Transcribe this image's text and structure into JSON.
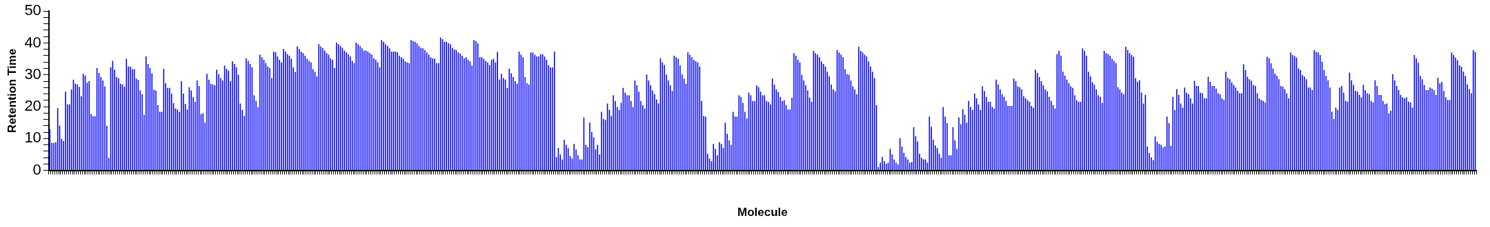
{
  "chart_data": {
    "type": "bar",
    "xlabel": "Molecule",
    "ylabel": "Retention Time",
    "color": "#0000ff",
    "ylim": [
      0,
      50
    ],
    "yticks": [
      0,
      {
        "value": 2,
        "label": null
      },
      {
        "value": 4,
        "label": null
      },
      {
        "value": 6,
        "label": null
      },
      {
        "value": 8,
        "label": null
      },
      10,
      {
        "value": 12,
        "label": null
      },
      {
        "value": 14,
        "label": null
      },
      {
        "value": 16,
        "label": null
      },
      {
        "value": 18,
        "label": null
      },
      20,
      {
        "value": 22,
        "label": null
      },
      {
        "value": 24,
        "label": null
      },
      {
        "value": 26,
        "label": null
      },
      {
        "value": 28,
        "label": null
      },
      30,
      {
        "value": 32,
        "label": null
      },
      {
        "value": 34,
        "label": null
      },
      {
        "value": 36,
        "label": null
      },
      {
        "value": 38,
        "label": null
      },
      40,
      {
        "value": 42,
        "label": null
      },
      {
        "value": 44,
        "label": null
      },
      {
        "value": 46,
        "label": null
      },
      {
        "value": 48,
        "label": null
      },
      50
    ],
    "grid": false,
    "values": [
      12.9,
      8.6,
      8.6,
      8.8,
      19.5,
      14,
      9.9,
      9.2,
      24.7,
      20.7,
      20.7,
      25.4,
      28.5,
      27.2,
      27,
      26.2,
      23.3,
      30.3,
      29.8,
      27.5,
      28,
      17.7,
      17,
      17,
      32.1,
      30.6,
      29.3,
      28.2,
      26.4,
      14,
      3.9,
      32.4,
      34.4,
      31.6,
      29.3,
      28.9,
      27.2,
      27,
      26.2,
      35,
      32.6,
      32.6,
      31.8,
      31.8,
      28.8,
      28.4,
      25.1,
      23.9,
      17.4,
      35.8,
      33.4,
      32.1,
      30.5,
      25.3,
      25.1,
      20.5,
      18.4,
      18.4,
      31.9,
      27.4,
      25.9,
      25.9,
      24.1,
      21.1,
      19.4,
      19.1,
      18.4,
      28,
      24.1,
      20.9,
      19.1,
      26.1,
      25.1,
      23,
      21.5,
      28.2,
      26.5,
      17.7,
      17.9,
      15,
      30.3,
      28.5,
      27.2,
      27,
      26.7,
      31.6,
      30.2,
      29,
      28.2,
      32.9,
      31.9,
      31.3,
      28,
      34.2,
      33.4,
      32.3,
      30,
      21,
      19,
      17.1,
      35.2,
      34.4,
      33.4,
      32.3,
      23.6,
      21.8,
      19.9,
      36.3,
      35.5,
      34.7,
      33.7,
      32.6,
      32.1,
      29,
      37.3,
      37.1,
      35.8,
      34.7,
      33.9,
      38.1,
      37.3,
      36.5,
      36,
      35,
      32.3,
      30.9,
      38.9,
      38.1,
      37.3,
      36.8,
      36,
      35,
      34.4,
      33.9,
      31.8,
      30.9,
      29.5,
      39.6,
      38.9,
      38.4,
      37.6,
      36.8,
      36.3,
      35.2,
      34.7,
      32.1,
      40.1,
      39.6,
      39.1,
      38.5,
      37.6,
      37.1,
      36.5,
      35.8,
      34.4,
      33.7,
      40.1,
      39.6,
      39.1,
      38.3,
      37.6,
      37.6,
      37.3,
      36.8,
      36.3,
      35.2,
      34.7,
      33.9,
      32.3,
      40.9,
      40.4,
      39.6,
      39.1,
      38.3,
      37.3,
      37.3,
      37.3,
      37.1,
      36,
      35.5,
      35,
      34.2,
      33.9,
      33.7,
      40.9,
      40.6,
      40.4,
      39.9,
      39.1,
      38.5,
      38.3,
      37.8,
      37,
      36.3,
      35.5,
      35.2,
      35,
      33.7,
      33.7,
      41.7,
      41.2,
      40.4,
      40.4,
      39.9,
      39.6,
      38.5,
      38,
      37.8,
      37,
      36.7,
      36,
      35.2,
      35.5,
      34.7,
      34.2,
      32.9,
      40.9,
      40.6,
      39.9,
      35.5,
      35.5,
      35,
      34.4,
      33.9,
      33.1,
      34.7,
      35,
      33.9,
      37.2,
      28.5,
      30.3,
      29,
      28.5,
      25.9,
      31.9,
      30.5,
      29.3,
      28,
      27.2,
      37.3,
      36.3,
      35.5,
      29.3,
      27.4,
      26.9,
      37,
      37,
      36.3,
      35.8,
      35.8,
      36.5,
      36.5,
      35.8,
      34.7,
      33.1,
      32.3,
      32.3,
      37.3,
      4.2,
      7,
      5,
      3.4,
      9.6,
      8,
      7,
      4.5,
      3.7,
      8.3,
      6.5,
      4.7,
      3.4,
      3.4,
      16.6,
      8,
      7.3,
      15,
      12,
      10.4,
      6.6,
      8,
      5,
      18.4,
      16.1,
      15.8,
      21,
      19,
      17.1,
      23.6,
      21.8,
      19.9,
      19,
      21.2,
      25.9,
      24.4,
      23.6,
      23.6,
      21.8,
      19.9,
      28.2,
      26.7,
      24.7,
      21.8,
      20.5,
      19.4,
      30.1,
      28.2,
      26.7,
      25.1,
      23.9,
      22.3,
      21,
      35.2,
      33.9,
      33.1,
      30.1,
      28.2,
      26.7,
      24.9,
      36,
      35.5,
      35,
      32.9,
      30.1,
      28.8,
      27.2,
      37.1,
      36.3,
      35.5,
      34.7,
      34.2,
      33.9,
      32.6,
      21.8,
      17.1,
      16.9,
      5.2,
      3.7,
      2.9,
      8.3,
      6.7,
      4.7,
      8.8,
      8.3,
      7,
      15,
      11.5,
      9.4,
      8,
      18.4,
      16.9,
      16.9,
      23.6,
      23.1,
      21.2,
      18.4,
      16.3,
      24.4,
      23.6,
      21.8,
      21.8,
      26.7,
      26.1,
      24.7,
      23.6,
      23.6,
      21.8,
      21.5,
      20.7,
      28.8,
      26.9,
      25.4,
      24.6,
      23.1,
      21.8,
      22,
      20.5,
      19.1,
      19.1,
      22.8,
      36.8,
      36,
      34.7,
      33.9,
      30,
      28.2,
      26.7,
      25.1,
      22.8,
      21.5,
      37.5,
      36.8,
      36.3,
      35.5,
      34.2,
      33.4,
      32.6,
      31,
      29.5,
      26.9,
      25.4,
      24.8,
      37.8,
      37,
      36.3,
      35.5,
      31.8,
      30.2,
      30,
      28.2,
      26.4,
      25.4,
      23.9,
      38.8,
      37.5,
      37,
      36.3,
      35.8,
      34.2,
      32.6,
      31,
      29,
      20.5,
      1,
      2.4,
      4.2,
      2.9,
      2.1,
      2.4,
      6.7,
      5,
      3.4,
      2.4,
      1.8,
      10.1,
      7.5,
      5.5,
      4.2,
      3.4,
      2.4,
      2.6,
      13.5,
      10.7,
      9.1,
      5.2,
      3.9,
      3.4,
      3.4,
      2.4,
      16.9,
      13.7,
      9.6,
      7.8,
      7,
      5.2,
      3.9,
      19.9,
      16.9,
      14.8,
      4.7,
      4.7,
      13.5,
      9.4,
      6.7,
      16.6,
      14.5,
      19.2,
      17.4,
      15,
      21.8,
      19.9,
      19,
      24.1,
      22.6,
      20.7,
      19,
      26.4,
      24.9,
      23.1,
      21.5,
      21.5,
      19.9,
      19.4,
      28.5,
      27,
      25.4,
      23.9,
      23.1,
      21.8,
      20.2,
      20.2,
      20.2,
      28.8,
      28,
      26.4,
      26.1,
      25.4,
      23.3,
      22.6,
      22,
      21.5,
      20.2,
      19.7,
      31.6,
      30.6,
      29.3,
      28,
      26.7,
      25.4,
      24.8,
      23.1,
      21.8,
      20.5,
      19.4,
      36.5,
      37.5,
      36,
      31,
      29.8,
      28.5,
      27.4,
      26.4,
      25.9,
      23.6,
      22,
      21.5,
      21.5,
      38.3,
      37.5,
      36,
      31,
      29.5,
      27.7,
      26.9,
      25.4,
      23.6,
      23.1,
      21.2,
      37.5,
      36.8,
      36.5,
      36,
      35,
      34.4,
      33.7,
      26.1,
      25.4,
      24.4,
      23.9,
      38.8,
      37.8,
      36.8,
      36.2,
      35.7,
      28.9,
      27.8,
      28.3,
      24.4,
      21,
      23.7,
      7.5,
      5.4,
      4.1,
      3.2,
      10.6,
      9,
      8.3,
      8,
      7.2,
      7.5,
      16.9,
      14.8,
      7.7,
      23.1,
      19,
      25.5,
      23.7,
      21,
      19.7,
      26,
      24.4,
      23.9,
      22.6,
      21,
      28.1,
      26.5,
      26.5,
      24.4,
      24.2,
      22.6,
      22.6,
      29.4,
      27.8,
      26.5,
      26.5,
      25.7,
      24.2,
      23.9,
      22.6,
      22.1,
      31,
      29.1,
      28.6,
      27.6,
      26.8,
      26,
      25,
      24.2,
      24.2,
      33.3,
      31.5,
      29.4,
      28.6,
      28.1,
      26.8,
      26.5,
      24.2,
      22.6,
      22.1,
      21.8,
      21.3,
      35.7,
      35.2,
      33.6,
      32,
      30.4,
      29.7,
      28.6,
      26.5,
      26.3,
      25.5,
      24.2,
      22.6,
      37,
      36.2,
      35.9,
      35.4,
      32,
      31.5,
      29.9,
      29.4,
      28.6,
      26,
      26,
      25.2,
      37.7,
      37.2,
      37,
      36.2,
      34.1,
      31.5,
      29.7,
      28.3,
      26,
      18.4,
      16.1,
      19.7,
      19,
      26,
      26.5,
      24.4,
      21.8,
      21.6,
      30.7,
      28.3,
      26.8,
      25,
      24.7,
      23.7,
      22.9,
      26.8,
      25.2,
      24.2,
      23.9,
      21.8,
      21.3,
      28.3,
      26.5,
      23.7,
      23.7,
      21.8,
      20.8,
      21,
      17.9,
      18.7,
      30.2,
      28.3,
      26.5,
      25.2,
      23.7,
      22.9,
      22.6,
      22.9,
      21.6,
      21.3,
      19.7,
      36.2,
      35.2,
      33.8,
      29.7,
      28.6,
      26.8,
      25.2,
      25.2,
      26,
      25.7,
      25.2,
      23.7,
      29.1,
      27.3,
      27.8,
      25,
      22.9,
      22.1,
      22.1,
      37,
      36.2,
      35.4,
      34.6,
      33,
      32.5,
      31,
      29.7,
      27,
      25.5,
      24.2,
      37.7,
      37.2
    ]
  }
}
